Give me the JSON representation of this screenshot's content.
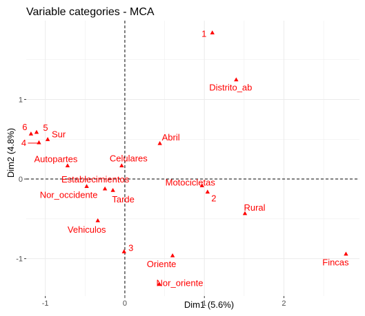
{
  "chart_data": {
    "type": "scatter",
    "title": "Variable categories - MCA",
    "xlabel": "Dim1 (5.6%)",
    "ylabel": "Dim2 (4.8%)",
    "xlim": [
      -1.24,
      2.95
    ],
    "ylim": [
      -1.47,
      1.99
    ],
    "x_ticks": [
      {
        "value": -1,
        "label": "-1"
      },
      {
        "value": 0,
        "label": "0"
      },
      {
        "value": 1,
        "label": "1"
      },
      {
        "value": 2,
        "label": "2"
      }
    ],
    "y_ticks": [
      {
        "value": -1,
        "label": "-1"
      },
      {
        "value": 0,
        "label": "0"
      },
      {
        "value": 1,
        "label": "1"
      }
    ],
    "grid": true,
    "reference_lines": {
      "x": 0,
      "y": 0,
      "style": "dashed"
    },
    "point_color": "#ff0000",
    "grid_color": "#ebebeb",
    "points": [
      {
        "label": "1",
        "x": 1.1,
        "y": 1.84
      },
      {
        "label": "Distrito_ab",
        "x": 1.4,
        "y": 1.25
      },
      {
        "label": "6",
        "x": -1.18,
        "y": 0.57
      },
      {
        "label": "5",
        "x": -1.11,
        "y": 0.59
      },
      {
        "label": "Sur",
        "x": -0.97,
        "y": 0.5
      },
      {
        "label": "4",
        "x": -1.08,
        "y": 0.46
      },
      {
        "label": "Abril",
        "x": 0.44,
        "y": 0.45
      },
      {
        "label": "Autopartes",
        "x": -0.72,
        "y": 0.17
      },
      {
        "label": "Celulares",
        "x": -0.04,
        "y": 0.17
      },
      {
        "label": "Establecimientos",
        "x": -0.25,
        "y": -0.12
      },
      {
        "label": "Motocicletas",
        "x": 0.97,
        "y": -0.08
      },
      {
        "label": "2",
        "x": 1.04,
        "y": -0.16
      },
      {
        "label": "Nor_occidente",
        "x": -0.48,
        "y": -0.09
      },
      {
        "label": "Tarde",
        "x": -0.15,
        "y": -0.14
      },
      {
        "label": "Rural",
        "x": 1.51,
        "y": -0.43
      },
      {
        "label": "Vehiculos",
        "x": -0.34,
        "y": -0.52
      },
      {
        "label": "3",
        "x": -0.01,
        "y": -0.91
      },
      {
        "label": "Oriente",
        "x": 0.6,
        "y": -0.96
      },
      {
        "label": "Fincas",
        "x": 2.78,
        "y": -0.94
      },
      {
        "label": "Nor_oriente",
        "x": 0.43,
        "y": -1.32
      }
    ]
  }
}
